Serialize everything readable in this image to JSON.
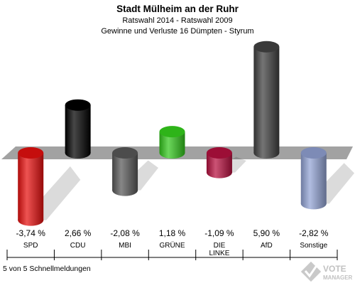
{
  "chart_data": {
    "type": "bar",
    "title": "Stadt Mülheim an der Ruhr",
    "subtitle": "Ratswahl 2014 - Ratswahl 2009",
    "subtitle2": "Gewinne und Verluste 16 Dümpten - Styrum",
    "categories": [
      "SPD",
      "CDU",
      "MBI",
      "GRÜNE",
      "DIE LINKE",
      "AfD",
      "Sonstige"
    ],
    "category_lines": [
      [
        "SPD"
      ],
      [
        "CDU"
      ],
      [
        "MBI"
      ],
      [
        "GRÜNE"
      ],
      [
        "DIE",
        "LINKE"
      ],
      [
        "AfD"
      ],
      [
        "Sonstige"
      ]
    ],
    "values": [
      -3.74,
      2.66,
      -2.08,
      1.18,
      -1.09,
      5.9,
      -2.82
    ],
    "value_labels": [
      "-3,74 %",
      "2,66 %",
      "-2,08 %",
      "1,18 %",
      "-1,09 %",
      "5,90 %",
      "-2,82 %"
    ],
    "colors": [
      "#e8100f",
      "#000000",
      "#595959",
      "#33c81c",
      "#b8103f",
      "#404040",
      "#93a4d6"
    ],
    "ylim": [
      -4,
      6
    ],
    "grid": false,
    "legend": "none"
  },
  "footer": {
    "note": "5 von 5 Schnellmeldungen"
  },
  "logo": {
    "line1": "VOTE",
    "line2": "MANAGER"
  }
}
